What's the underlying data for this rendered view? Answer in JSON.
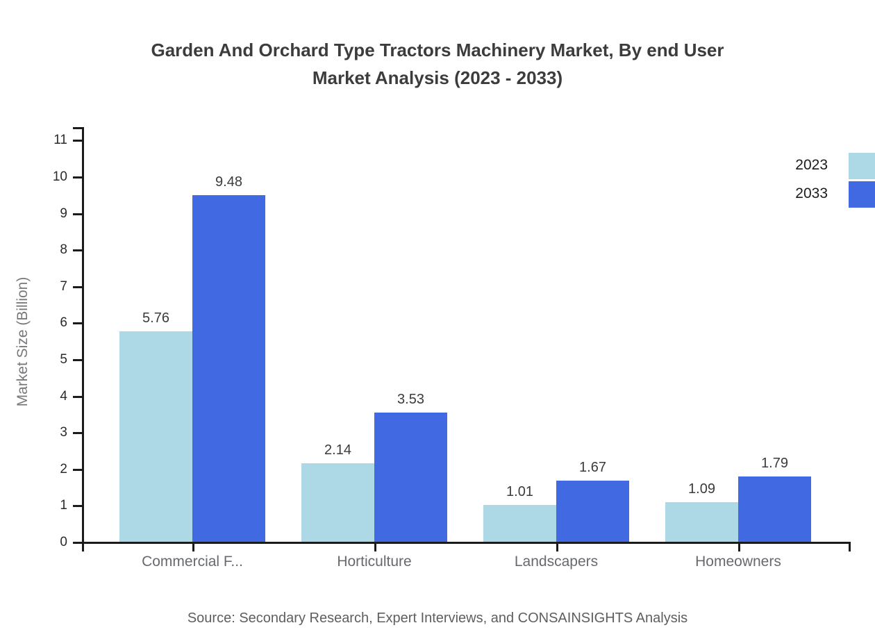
{
  "title": {
    "line1": "Garden And Orchard Type Tractors Machinery Market, By end User",
    "line2": "Market Analysis (2023 - 2033)"
  },
  "source": "Source: Secondary Research, Expert Interviews, and CONSAINSIGHTS Analysis",
  "colors": {
    "series_2023": "#ADD8E6",
    "series_2033": "#4169E1",
    "axis": "#1b1b1b",
    "title_text": "#3c3c3c",
    "category_text": "#67696d",
    "source_text": "#5e5e5e"
  },
  "chart_data": {
    "type": "bar",
    "title": "Garden And Orchard Type Tractors Machinery Market, By end User Market Analysis (2023 - 2033)",
    "categories": [
      "Commercial F...",
      "Horticulture",
      "Landscapers",
      "Homeowners"
    ],
    "series": [
      {
        "name": "2023",
        "color": "#ADD8E6",
        "values": [
          5.76,
          2.14,
          1.01,
          1.09
        ]
      },
      {
        "name": "2033",
        "color": "#4169E1",
        "values": [
          9.48,
          3.53,
          1.67,
          1.79
        ]
      }
    ],
    "xlabel": "",
    "ylabel": "Market Size (Billion)",
    "ylim": [
      0,
      11
    ],
    "yticks": [
      0,
      1,
      2,
      3,
      4,
      5,
      6,
      7,
      8,
      9,
      10,
      11
    ],
    "grid": false,
    "legend_position": "right",
    "value_labels": true
  }
}
